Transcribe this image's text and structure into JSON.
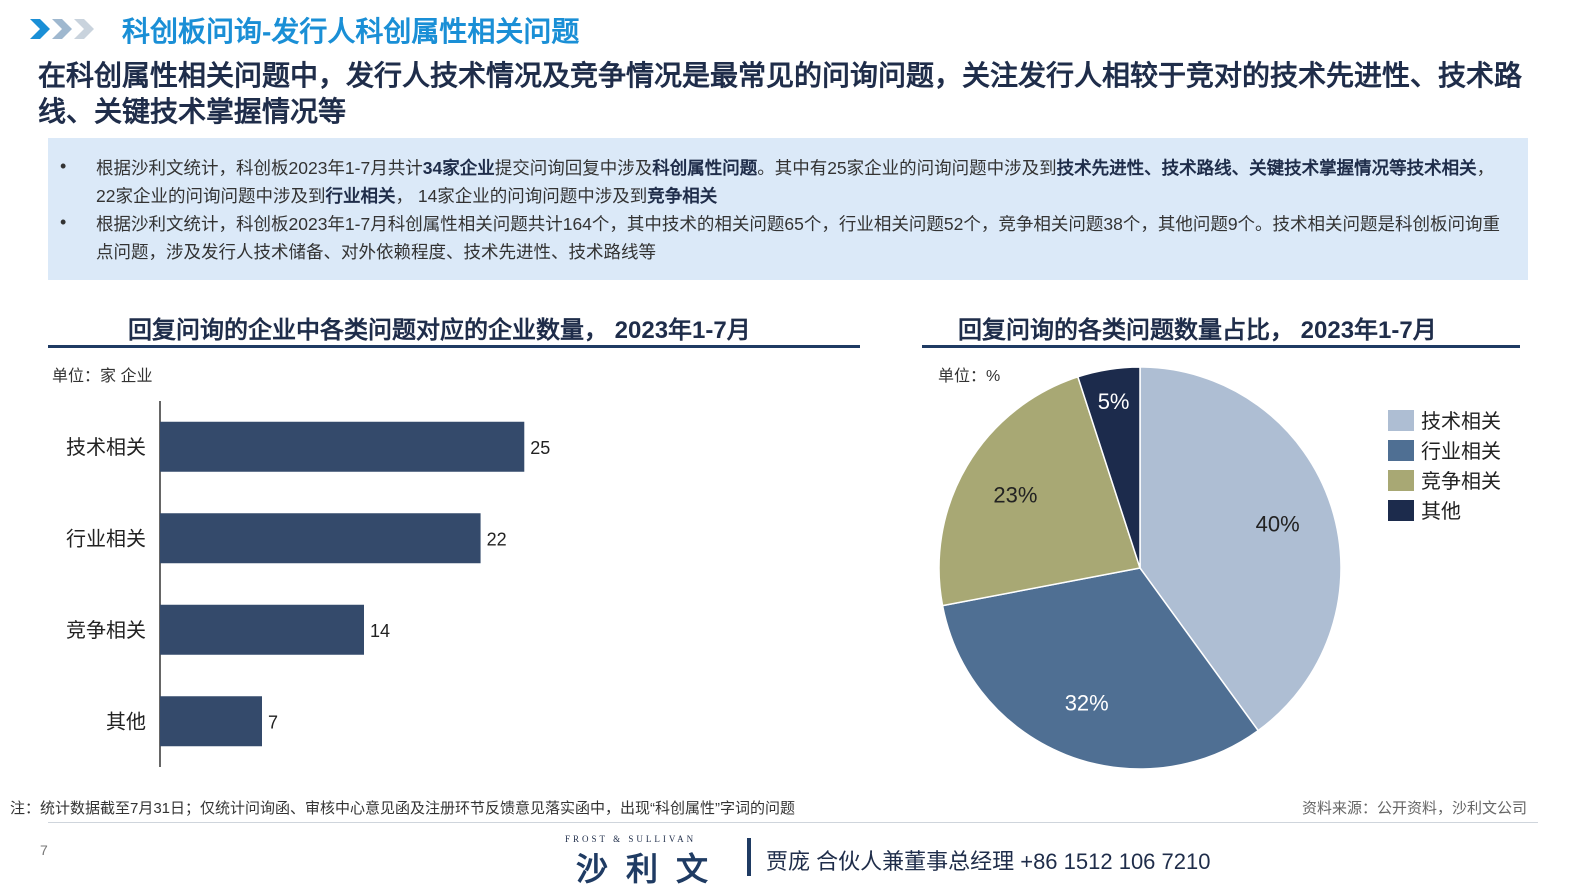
{
  "header": {
    "section_title": "科创板问询-发行人科创属性相关问题",
    "headline": "在科创属性相关问题中，发行人技术情况及竞争情况是最常见的问询问题，关注发行人相较于竞对的技术先进性、技术路线、关键技术掌握情况等"
  },
  "info": {
    "bullet_glyph": "•",
    "b1": {
      "t1": "根据沙利文统计，科创板2023年1-7月共计",
      "b1": "34家企业",
      "t2": "提交问询回复中涉及",
      "b2": "科创属性问题",
      "t3": "。其中有25家企业的问询问题中涉及到",
      "b3": "技术先进性、技术路线、关键技术掌握情况等技术相关",
      "t4": "， 22家企业的问询问题中涉及到",
      "b4": "行业相关",
      "t5": "， 14家企业的问询问题中涉及到",
      "b5": "竞争相关"
    },
    "b2_text": "根据沙利文统计，科创板2023年1-7月科创属性相关问题共计164个，其中技术的相关问题65个，行业相关问题52个，竞争相关问题38个，其他问题9个。技术相关问题是科创板问询重点问题，涉及发行人技术储备、对外依赖程度、技术先进性、技术路线等"
  },
  "bar_panel": {
    "title": "回复问询的企业中各类问题对应的企业数量， 2023年1-7月",
    "unit": "单位：家 企业"
  },
  "pie_panel": {
    "title": "回复问询的各类问题数量占比， 2023年1-7月",
    "unit": "单位：%"
  },
  "chart_data": [
    {
      "type": "bar",
      "orientation": "horizontal",
      "title": "回复问询的企业中各类问题对应的企业数量， 2023年1-7月",
      "categories": [
        "技术相关",
        "行业相关",
        "竞争相关",
        "其他"
      ],
      "values": [
        25,
        22,
        14,
        7
      ],
      "xlim": [
        0,
        35
      ],
      "color": "#344a6b",
      "grid": false
    },
    {
      "type": "pie",
      "title": "回复问询的各类问题数量占比， 2023年1-7月",
      "labels": [
        "技术相关",
        "行业相关",
        "竞争相关",
        "其他"
      ],
      "values": [
        40,
        32,
        23,
        5
      ],
      "value_labels": [
        "40%",
        "32%",
        "23%",
        "5%"
      ],
      "colors": [
        "#aebed3",
        "#4f6f93",
        "#a8a874",
        "#1c2b4c"
      ],
      "legend": "right"
    }
  ],
  "footer": {
    "note": "注：统计数据截至7月31日；仅统计问询函、审核中心意见函及注册环节反馈意见落实函中，出现“科创属性”字词的问题",
    "source": "资料来源：公开资料，沙利文公司",
    "page_number": "7",
    "logo_en": "FROST & SULLIVAN",
    "logo_cn": "沙利文",
    "contact": "贾庞  合伙人兼董事总经理    +86 1512 106 7210"
  }
}
